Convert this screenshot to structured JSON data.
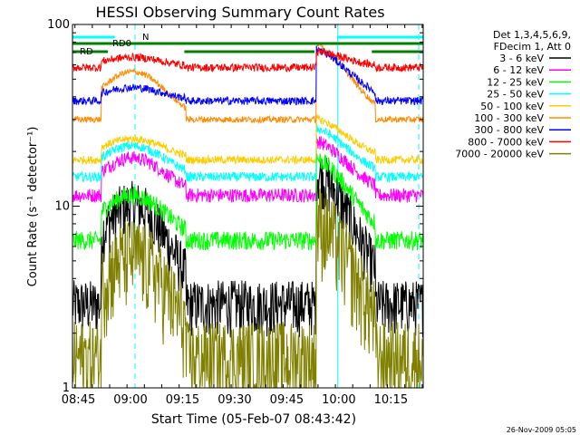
{
  "chart_data": {
    "type": "line",
    "title": "HESSI Observing Summary Count Rates",
    "xlabel": "Start Time (05-Feb-07 08:43:42)",
    "ylabel": "Count Rate (s⁻¹ detector⁻¹)",
    "yscale": "log",
    "xlim_minutes": [
      -1.7,
      99.3
    ],
    "ylim": [
      1,
      100
    ],
    "x_ticks": [
      {
        "label": "08:45",
        "minute": 0
      },
      {
        "label": "09:00",
        "minute": 15
      },
      {
        "label": "09:15",
        "minute": 30
      },
      {
        "label": "09:30",
        "minute": 45
      },
      {
        "label": "09:45",
        "minute": 60
      },
      {
        "label": "10:00",
        "minute": 75
      },
      {
        "label": "10:15",
        "minute": 90
      }
    ],
    "y_tick_labels": [
      {
        "label": "1",
        "value": 1
      },
      {
        "label": "10",
        "value": 10
      },
      {
        "label": "100",
        "value": 100
      }
    ],
    "legend_header": [
      "Det 1,3,4,5,6,9,",
      "FDecim 1, Att 0"
    ],
    "legend_position": "right",
    "series": [
      {
        "name": "3 - 6 keV",
        "color": "#000000",
        "base": 2.9,
        "peaks": [
          10.2,
          16.0
        ]
      },
      {
        "name": "6 - 12 keV",
        "color": "#ff00ff",
        "base": 11.5,
        "peaks": [
          18.5,
          23.5
        ]
      },
      {
        "name": "12 - 25 keV",
        "color": "#00ff00",
        "base": 6.5,
        "peaks": [
          11.5,
          19.0
        ]
      },
      {
        "name": "25 - 50 keV",
        "color": "#00ffff",
        "base": 14.5,
        "peaks": [
          21.5,
          27.5
        ]
      },
      {
        "name": "50 - 100 keV",
        "color": "#ffcc00",
        "base": 18.0,
        "peaks": [
          23.5,
          31.0
        ]
      },
      {
        "name": "100 - 300 keV",
        "color": "#ff8c00",
        "base": 30.0,
        "peaks": [
          55.0,
          80.0
        ]
      },
      {
        "name": "300 - 800 keV",
        "color": "#0000ff",
        "base": 38.0,
        "peaks": [
          45.0,
          75.0
        ]
      },
      {
        "name": "800 - 7000 keV",
        "color": "#ff0000",
        "base": 58.0,
        "peaks": [
          66.0,
          72.0
        ]
      },
      {
        "name": "7000 - 20000 keV",
        "color": "#808000",
        "base": 1.5,
        "peaks": [
          5.5,
          9.0
        ]
      }
    ],
    "flags": [
      {
        "name": "N",
        "color": "#00ffff",
        "segments": [
          [
            -1.7,
            10.5
          ],
          [
            74.5,
            99.3
          ]
        ]
      },
      {
        "name": "RD0",
        "color": "#008000",
        "segments": [
          [
            -1.7,
            99.3
          ]
        ]
      },
      {
        "name": "RD",
        "color": "#008000",
        "segments": [
          [
            -1.7,
            8.5
          ],
          [
            30.5,
            68.0
          ],
          [
            84.5,
            99.3
          ]
        ]
      }
    ],
    "vertical_markers": [
      {
        "minute": -1.7,
        "color": "#00ffff",
        "style": "solid"
      },
      {
        "minute": 16.3,
        "color": "#00ffff",
        "style": "dashed"
      },
      {
        "minute": 74.7,
        "color": "#00ffff",
        "style": "solid"
      },
      {
        "minute": 98.0,
        "color": "#00ffff",
        "style": "dashed"
      }
    ],
    "transitions_minutes": [
      6.6,
      30.0,
      68.5,
      84.5
    ]
  },
  "footer_date": "26-Nov-2009 05:05"
}
